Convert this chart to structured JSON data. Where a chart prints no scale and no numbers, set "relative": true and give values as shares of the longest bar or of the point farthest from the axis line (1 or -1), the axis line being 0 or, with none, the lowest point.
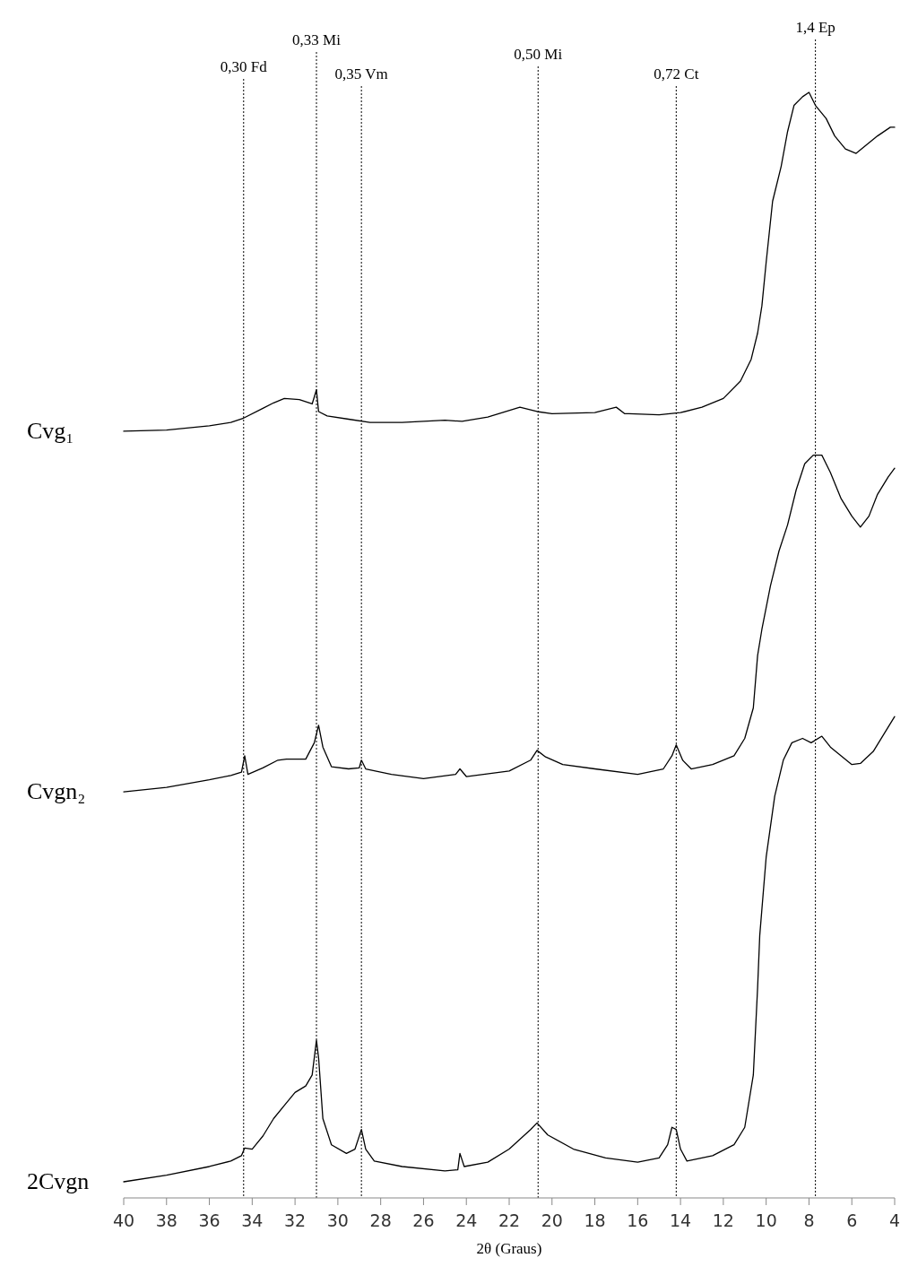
{
  "chart_data": {
    "type": "line",
    "relative": true,
    "xlabel": "2θ (Graus)",
    "xlim": [
      40,
      4
    ],
    "xticks": [
      40,
      38,
      36,
      34,
      32,
      30,
      28,
      26,
      24,
      22,
      20,
      18,
      16,
      14,
      12,
      10,
      8,
      6,
      4
    ],
    "grid": false,
    "marker": "none",
    "line_style": "solid",
    "series": [
      {
        "name": "Cvg₁",
        "color": "#000000",
        "x": [
          40,
          38,
          36,
          35,
          34.4,
          33.5,
          33,
          32.5,
          31.8,
          31.2,
          31,
          30.9,
          30.5,
          29.5,
          28.5,
          27,
          25,
          24.2,
          23,
          21.5,
          20.7,
          20,
          18,
          17,
          16.6,
          16.4,
          15,
          14,
          13,
          12,
          11.2,
          10.7,
          10.4,
          10.2,
          10,
          9.7,
          9.3,
          9,
          8.7,
          8.3,
          8,
          7.7,
          7.2,
          6.8,
          6.3,
          5.8,
          5.3,
          4.8,
          4.2,
          4
        ],
        "values": [
          0.689,
          0.69,
          0.694,
          0.697,
          0.701,
          0.71,
          0.715,
          0.719,
          0.718,
          0.714,
          0.727,
          0.707,
          0.703,
          0.7,
          0.697,
          0.697,
          0.699,
          0.698,
          0.702,
          0.711,
          0.707,
          0.705,
          0.706,
          0.711,
          0.705,
          0.705,
          0.704,
          0.706,
          0.711,
          0.719,
          0.735,
          0.755,
          0.779,
          0.804,
          0.844,
          0.9,
          0.932,
          0.964,
          0.988,
          0.996,
          1.0,
          0.988,
          0.976,
          0.96,
          0.948,
          0.944,
          0.952,
          0.96,
          0.968,
          0.968
        ]
      },
      {
        "name": "Cvgn₂",
        "color": "#000000",
        "x": [
          40,
          38,
          36,
          35,
          34.5,
          34.35,
          34.2,
          33.5,
          32.8,
          32.4,
          31.5,
          31.1,
          30.9,
          30.7,
          30.3,
          29.5,
          29,
          28.9,
          28.7,
          27.5,
          26,
          24.5,
          24.3,
          24,
          22,
          21,
          20.7,
          20.3,
          19.5,
          18,
          16,
          14.8,
          14.4,
          14.2,
          13.9,
          13.5,
          12.5,
          11.5,
          11,
          10.6,
          10.4,
          10.2,
          9.8,
          9.4,
          9,
          8.6,
          8.2,
          7.8,
          7.4,
          7,
          6.5,
          6,
          5.6,
          5.2,
          4.8,
          4.3,
          4
        ],
        "values": [
          0.358,
          0.362,
          0.369,
          0.373,
          0.376,
          0.391,
          0.374,
          0.38,
          0.387,
          0.388,
          0.388,
          0.403,
          0.419,
          0.399,
          0.381,
          0.379,
          0.38,
          0.387,
          0.379,
          0.374,
          0.37,
          0.374,
          0.379,
          0.372,
          0.377,
          0.387,
          0.396,
          0.39,
          0.383,
          0.379,
          0.374,
          0.379,
          0.391,
          0.401,
          0.387,
          0.379,
          0.383,
          0.391,
          0.407,
          0.435,
          0.483,
          0.507,
          0.547,
          0.579,
          0.603,
          0.635,
          0.659,
          0.667,
          0.667,
          0.651,
          0.627,
          0.611,
          0.601,
          0.611,
          0.631,
          0.647,
          0.655
        ]
      },
      {
        "name": "2Cvgn",
        "color": "#000000",
        "x": [
          40,
          38,
          36,
          35,
          34.5,
          34.35,
          34,
          33.5,
          33,
          32.5,
          32,
          31.5,
          31.2,
          31,
          30.9,
          30.7,
          30.3,
          29.6,
          29.2,
          28.9,
          28.7,
          28.3,
          27,
          25,
          24.4,
          24.3,
          24.1,
          23,
          22,
          21,
          20.7,
          20.2,
          19,
          17.5,
          16,
          15,
          14.6,
          14.4,
          14.2,
          14,
          13.7,
          12.5,
          11.5,
          11,
          10.6,
          10.4,
          10.3,
          10,
          9.6,
          9.2,
          8.8,
          8.3,
          7.9,
          7.4,
          7,
          6.5,
          6,
          5.6,
          5,
          4.5,
          4
        ],
        "values": [
          0,
          0.006,
          0.014,
          0.019,
          0.024,
          0.031,
          0.03,
          0.042,
          0.058,
          0.07,
          0.082,
          0.088,
          0.098,
          0.13,
          0.114,
          0.058,
          0.034,
          0.026,
          0.03,
          0.048,
          0.03,
          0.019,
          0.014,
          0.01,
          0.011,
          0.026,
          0.014,
          0.018,
          0.03,
          0.048,
          0.054,
          0.043,
          0.03,
          0.022,
          0.018,
          0.022,
          0.034,
          0.05,
          0.048,
          0.03,
          0.019,
          0.024,
          0.034,
          0.05,
          0.098,
          0.178,
          0.226,
          0.298,
          0.354,
          0.387,
          0.403,
          0.407,
          0.403,
          0.409,
          0.399,
          0.391,
          0.383,
          0.384,
          0.395,
          0.411,
          0.427
        ]
      }
    ],
    "ref_lines": [
      {
        "axis": "x",
        "value": 34.4,
        "label": "0,30 Fd",
        "line_style": "dotted",
        "color": "#000000"
      },
      {
        "axis": "x",
        "value": 31.0,
        "label": "0,33 Mi",
        "line_style": "dotted",
        "color": "#000000"
      },
      {
        "axis": "x",
        "value": 28.9,
        "label": "0,35 Vm",
        "line_style": "dotted",
        "color": "#000000"
      },
      {
        "axis": "x",
        "value": 20.65,
        "label": "0,50 Mi",
        "line_style": "dotted",
        "color": "#000000"
      },
      {
        "axis": "x",
        "value": 14.2,
        "label": "0,72 Ct",
        "line_style": "dotted",
        "color": "#000000"
      },
      {
        "axis": "x",
        "value": 7.7,
        "label": "1,4 Ep",
        "line_style": "dotted",
        "color": "#000000"
      }
    ]
  }
}
